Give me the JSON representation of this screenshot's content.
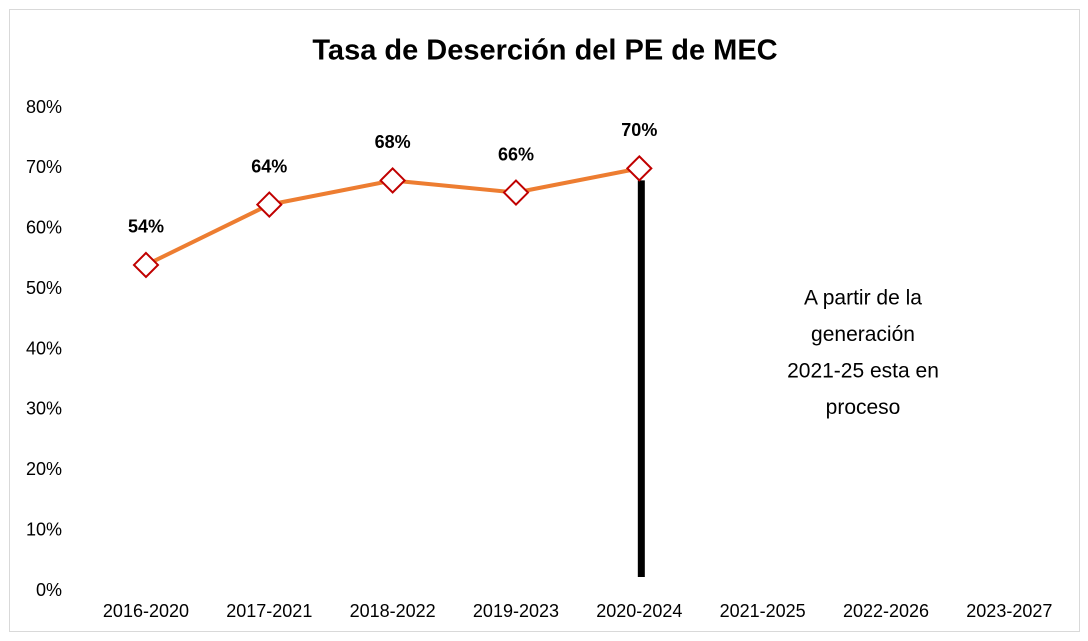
{
  "chart_data": {
    "type": "line",
    "title": "Tasa de Deserción del PE de MEC",
    "categories": [
      "2016-2020",
      "2017-2021",
      "2018-2022",
      "2019-2023",
      "2020-2024",
      "2021-2025",
      "2022-2026",
      "2023-2027"
    ],
    "series": [
      {
        "name": "Tasa de Deserción",
        "color": "#ed7d31",
        "marker_color": "#c00000",
        "values": [
          54,
          64,
          68,
          66,
          70,
          null,
          null,
          null
        ],
        "value_labels": [
          "54%",
          "64%",
          "68%",
          "66%",
          "70%",
          null,
          null,
          null
        ]
      }
    ],
    "ylim": [
      0,
      80
    ],
    "yticks": [
      {
        "value": 0,
        "label": "0%"
      },
      {
        "value": 10,
        "label": "10%"
      },
      {
        "value": 20,
        "label": "20%"
      },
      {
        "value": 30,
        "label": "30%"
      },
      {
        "value": 40,
        "label": "40%"
      },
      {
        "value": 50,
        "label": "50%"
      },
      {
        "value": 60,
        "label": "60%"
      },
      {
        "value": 70,
        "label": "70%"
      },
      {
        "value": 80,
        "label": "80%"
      }
    ],
    "grid": false,
    "annotation": [
      "A partir de la",
      "generación",
      "2021-25 esta en",
      "proceso"
    ]
  }
}
